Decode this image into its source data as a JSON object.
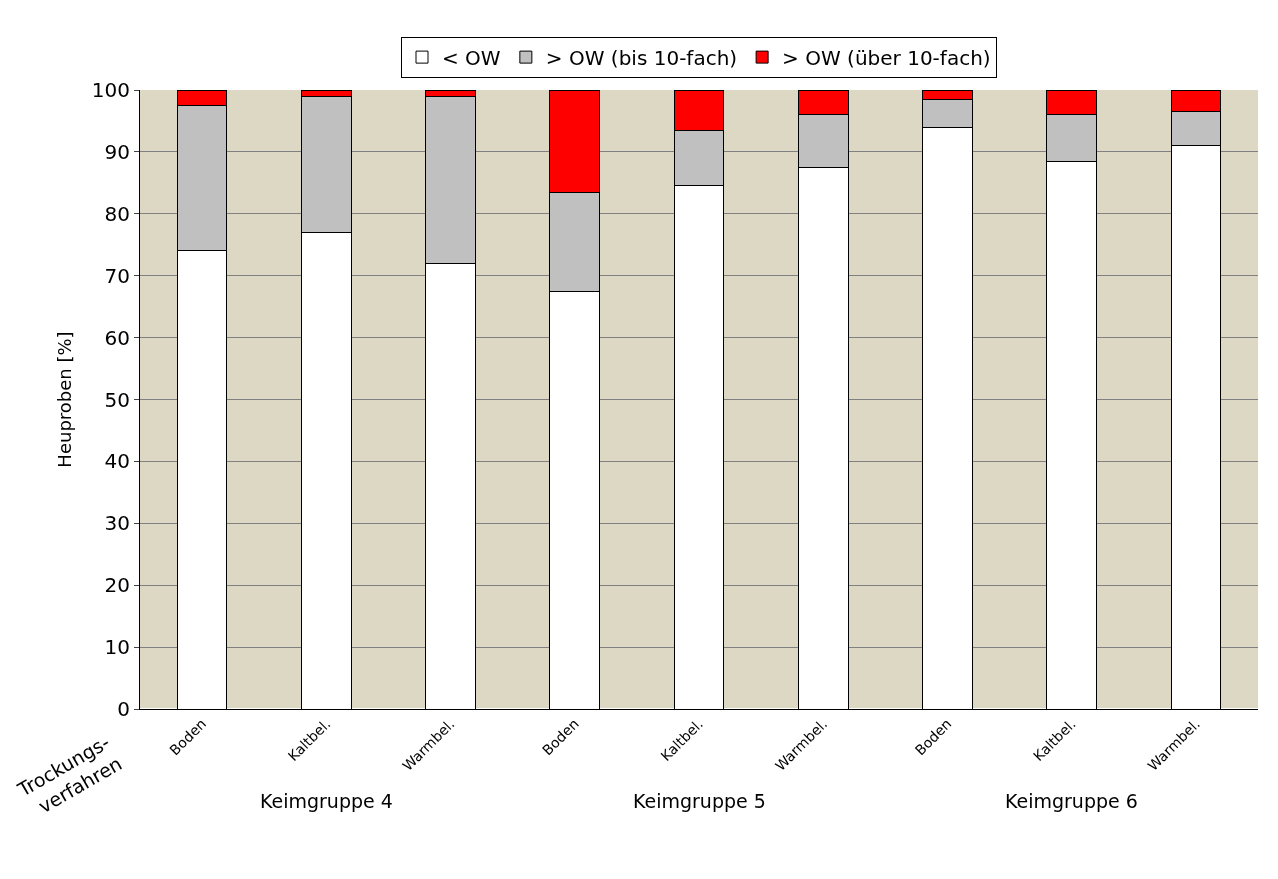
{
  "chart_data": {
    "type": "bar",
    "stacked": true,
    "ylabel": "Heuproben [%]",
    "categories": [
      "Boden",
      "Kaltbel.",
      "Warmbel.",
      "Boden",
      "Kaltbel.",
      "Warmbel.",
      "Boden",
      "Kaltbel.",
      "Warmbel."
    ],
    "series": [
      {
        "name": "< OW",
        "color": "#ffffff",
        "values": [
          74,
          77,
          72,
          67.5,
          84.5,
          87.5,
          94,
          88.5,
          91
        ]
      },
      {
        "name": "> OW (bis 10-fach)",
        "color": "#c0c0c0",
        "values": [
          23.5,
          22,
          27,
          16,
          9,
          8.5,
          4.5,
          7.5,
          5.5
        ]
      },
      {
        "name": "> OW (über 10-fach)",
        "color": "#ff0000",
        "values": [
          2.5,
          1,
          1,
          16.5,
          6.5,
          4,
          1.5,
          4,
          3.5
        ]
      }
    ],
    "ylim": [
      0,
      100
    ],
    "yticks": [
      0,
      10,
      20,
      30,
      40,
      50,
      60,
      70,
      80,
      90,
      100
    ],
    "grid": "y",
    "legend": "top",
    "annotations": [
      "Keimgruppe 4",
      "Keimgruppe 5",
      "Keimgruppe 6",
      "Trockungs-\nverfahren"
    ]
  }
}
